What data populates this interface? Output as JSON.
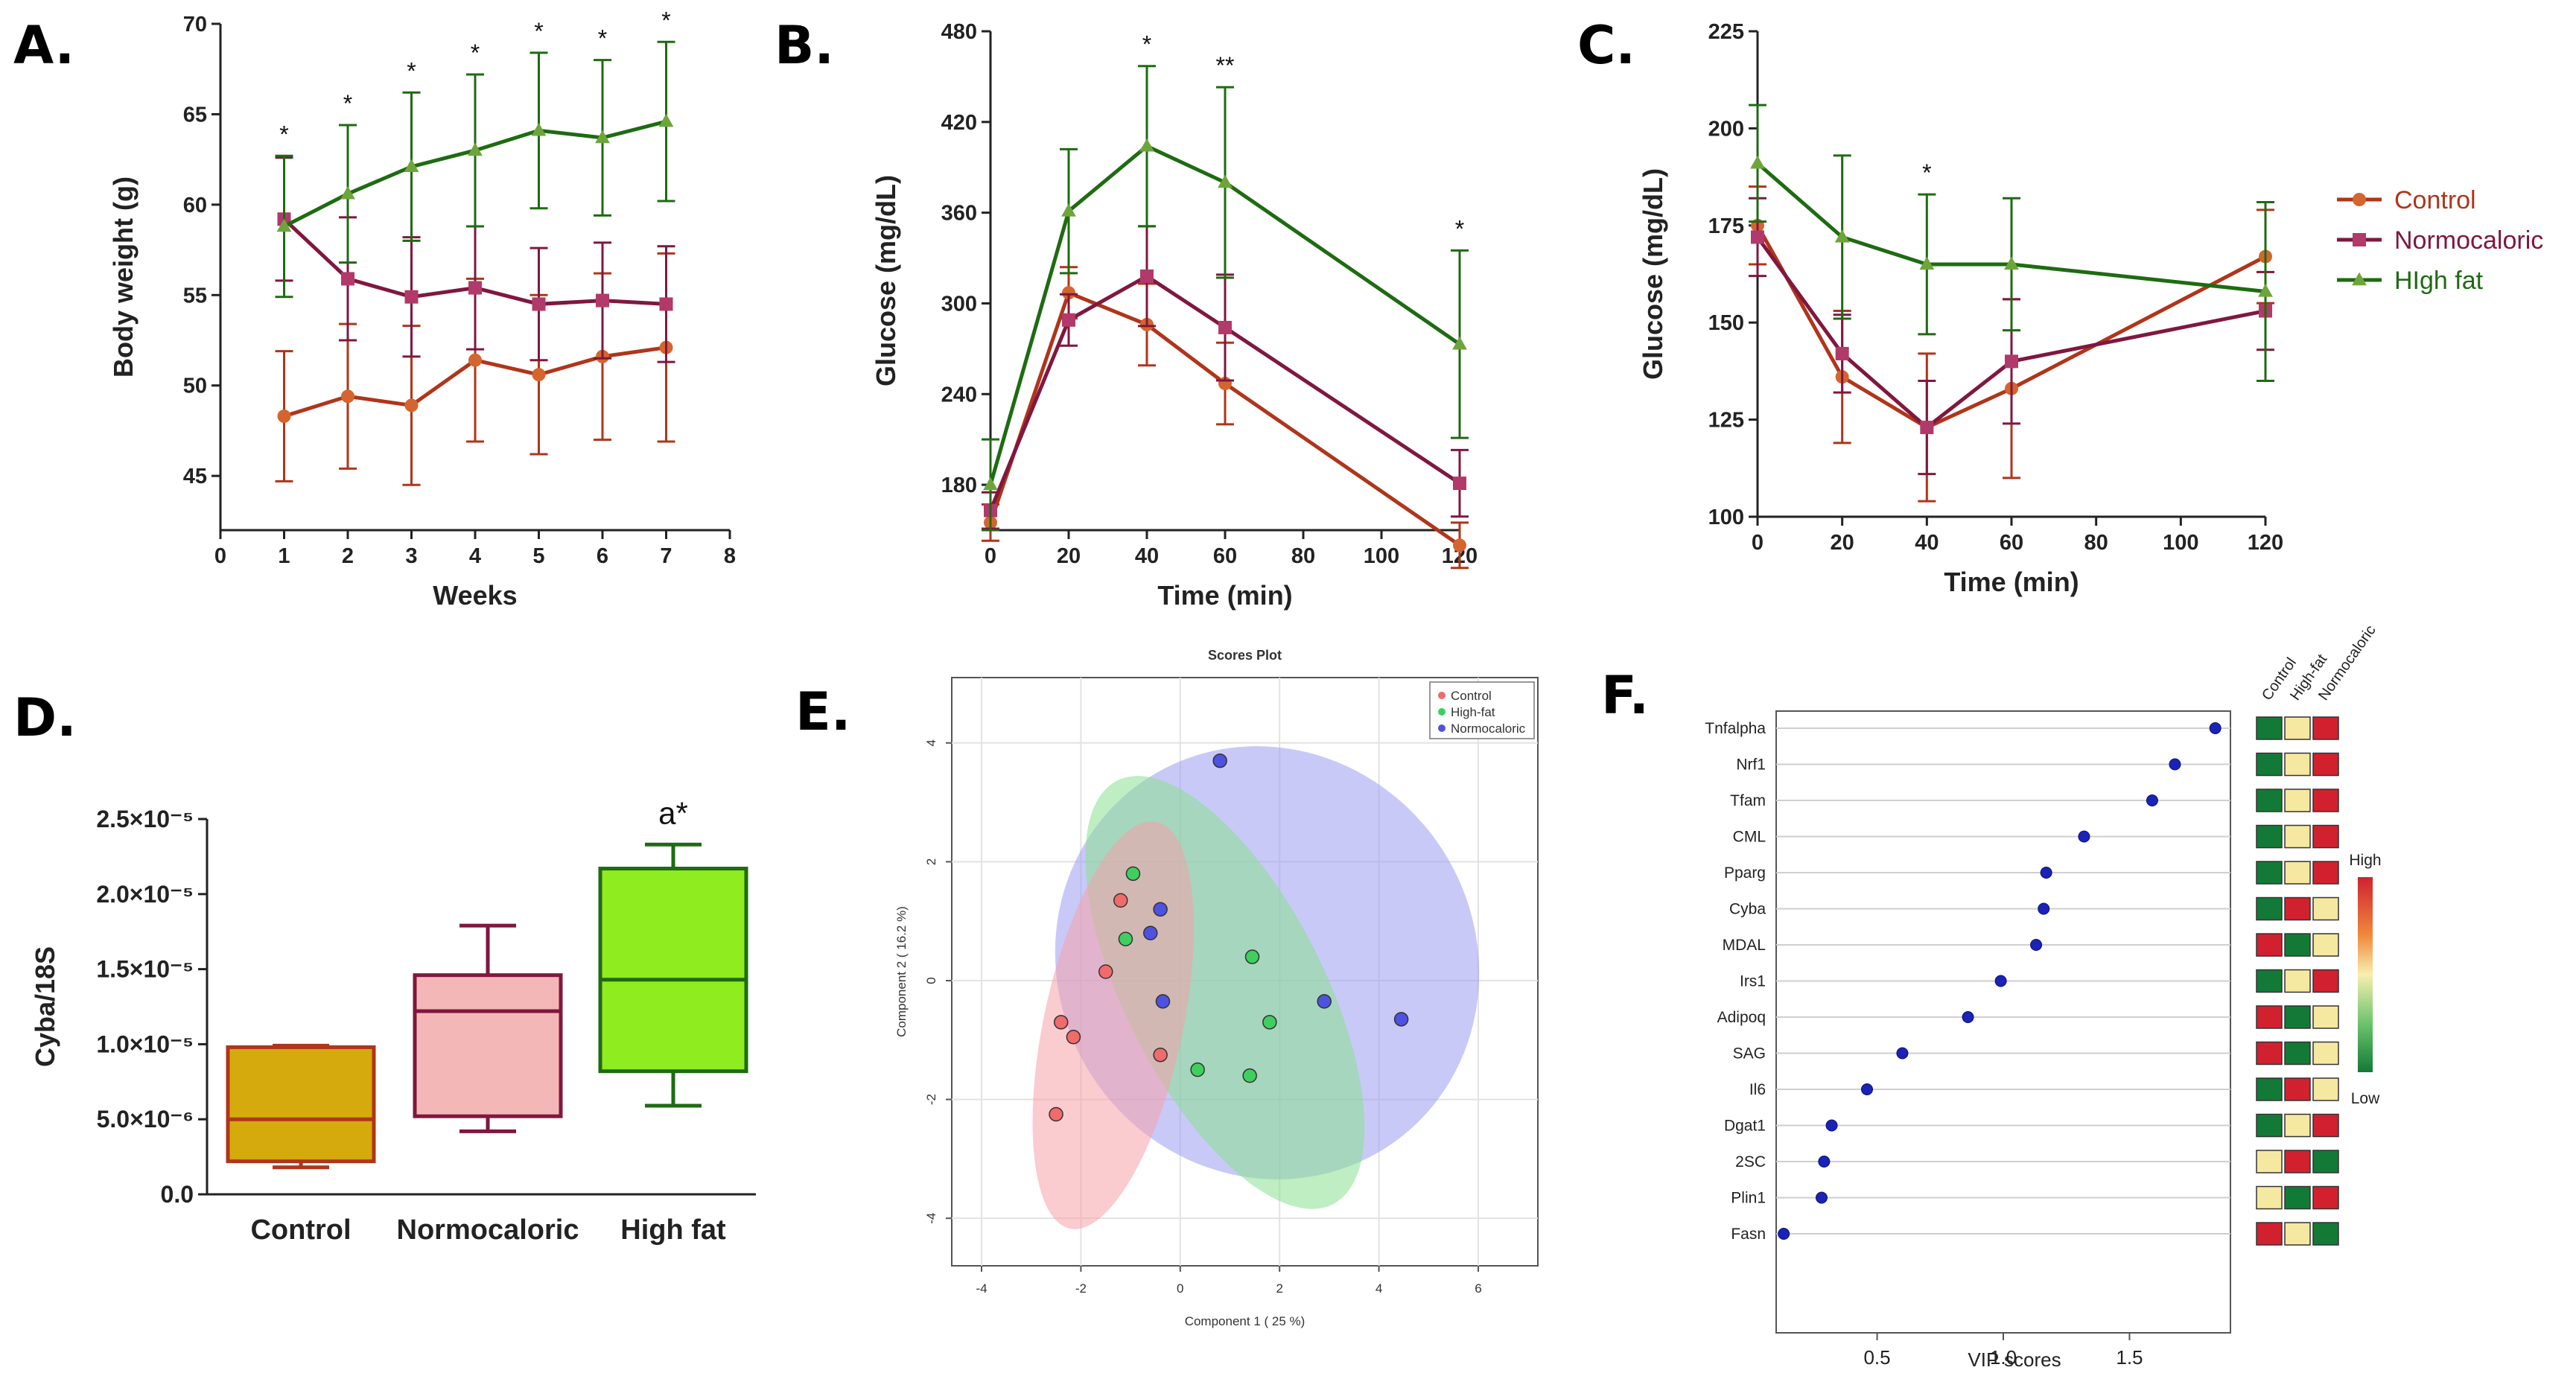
{
  "colors": {
    "control": "#b0351a",
    "normocaloric": "#80173f",
    "highfat": "#1e6b12",
    "control_marker": "#d4652f",
    "normo_marker": "#b13a6a",
    "highfat_marker": "#6ea53a"
  },
  "panel_labels": [
    "A.",
    "B.",
    "C.",
    "D.",
    "E.",
    "F."
  ],
  "chart_data": [
    {
      "panel": "A.",
      "type": "line",
      "xlabel": "Weeks",
      "ylabel": "Body weight (g)",
      "xlim": [
        0,
        8
      ],
      "ylim": [
        42,
        70
      ],
      "xticks": [
        "0",
        "1",
        "2",
        "3",
        "4",
        "5",
        "6",
        "7",
        "8"
      ],
      "yticks": [
        "45",
        "50",
        "55",
        "60",
        "65",
        "70"
      ],
      "x": [
        1,
        2,
        3,
        4,
        5,
        6,
        7
      ],
      "series": [
        {
          "name": "Control",
          "values": [
            48.3,
            49.4,
            48.9,
            51.4,
            50.6,
            51.6,
            52.1
          ],
          "errors": [
            3.6,
            4.0,
            4.4,
            4.5,
            4.4,
            4.6,
            5.2
          ]
        },
        {
          "name": "Normocaloric",
          "values": [
            59.2,
            55.9,
            54.9,
            55.4,
            54.5,
            54.7,
            54.5
          ],
          "errors": [
            3.4,
            3.4,
            3.3,
            3.4,
            3.1,
            3.2,
            3.2
          ]
        },
        {
          "name": "HIgh fat",
          "values": [
            58.8,
            60.6,
            62.1,
            63.0,
            64.1,
            63.7,
            64.6
          ],
          "errors": [
            3.9,
            3.8,
            4.1,
            4.2,
            4.3,
            4.3,
            4.4
          ]
        }
      ],
      "annotations": [
        "*",
        "*",
        "*",
        "*",
        "*",
        "*",
        "*"
      ]
    },
    {
      "panel": "B.",
      "type": "line",
      "xlabel": "Time (min)",
      "ylabel": "Glucose (mg/dL)",
      "xlim": [
        0,
        120
      ],
      "ylim": [
        150,
        480
      ],
      "xticks": [
        "0",
        "20",
        "40",
        "60",
        "80",
        "100",
        "120"
      ],
      "yticks": [
        "180",
        "240",
        "300",
        "360",
        "420",
        "480"
      ],
      "x": [
        0,
        20,
        40,
        60,
        120
      ],
      "series": [
        {
          "name": "Control",
          "values": [
            155,
            307,
            286,
            247,
            140
          ],
          "errors": [
            12,
            17,
            27,
            27,
            15
          ]
        },
        {
          "name": "Normocaloric",
          "values": [
            163,
            289,
            318,
            284,
            181
          ],
          "errors": [
            12,
            17,
            33,
            35,
            22
          ]
        },
        {
          "name": "HIgh fat",
          "values": [
            180,
            361,
            404,
            380,
            273
          ],
          "errors": [
            30,
            41,
            53,
            63,
            62
          ]
        }
      ],
      "annotations": [
        {
          "x": 40,
          "label": "*"
        },
        {
          "x": 60,
          "label": "**"
        },
        {
          "x": 120,
          "label": "*"
        }
      ]
    },
    {
      "panel": "C.",
      "type": "line",
      "xlabel": "Time (min)",
      "ylabel": "Glucose (mg/dL)",
      "xlim": [
        0,
        120
      ],
      "ylim": [
        100,
        225
      ],
      "xticks": [
        "0",
        "20",
        "40",
        "60",
        "80",
        "100",
        "120"
      ],
      "yticks": [
        "100",
        "125",
        "150",
        "175",
        "200",
        "225"
      ],
      "x": [
        0,
        20,
        40,
        60,
        120
      ],
      "series": [
        {
          "name": "Control",
          "values": [
            175,
            136,
            123,
            133,
            167
          ],
          "errors": [
            10,
            17,
            19,
            23,
            12
          ]
        },
        {
          "name": "Normocaloric",
          "values": [
            172,
            142,
            123,
            140,
            153
          ],
          "errors": [
            10,
            10,
            12,
            16,
            10
          ]
        },
        {
          "name": "HIgh fat",
          "values": [
            191,
            172,
            165,
            165,
            158
          ],
          "errors": [
            15,
            21,
            18,
            17,
            23
          ]
        }
      ],
      "annotations": [
        {
          "x": 40,
          "label": "*"
        }
      ],
      "legend": [
        "Control",
        "Normocaloric",
        "HIgh fat"
      ]
    },
    {
      "panel": "D.",
      "type": "box",
      "ylabel": "Cyba/18S",
      "ylim": [
        0,
        2.5e-05
      ],
      "yticks": [
        "0.0",
        "5.0×10⁻⁶",
        "1.0×10⁻⁵",
        "1.5×10⁻⁵",
        "2.0×10⁻⁵",
        "2.5×10⁻⁵"
      ],
      "categories": [
        "Control",
        "Normocaloric",
        "High fat"
      ],
      "boxes": [
        {
          "min": 1.8e-06,
          "q1": 2.2e-06,
          "median": 5e-06,
          "q3": 9.8e-06,
          "max": 9.9e-06,
          "fill": "#d4aa0c"
        },
        {
          "min": 4.2e-06,
          "q1": 5.2e-06,
          "median": 1.22e-05,
          "q3": 1.46e-05,
          "max": 1.79e-05,
          "fill": "#f3b7b7"
        },
        {
          "min": 5.9e-06,
          "q1": 8.2e-06,
          "median": 1.43e-05,
          "q3": 2.17e-05,
          "max": 2.33e-05,
          "fill": "#8fec1e"
        }
      ],
      "annotation": "a*"
    },
    {
      "panel": "E.",
      "type": "scatter",
      "title": "Scores Plot",
      "xlabel": "Component 1 ( 25 %)",
      "ylabel": "Component 2 ( 16.2 %)",
      "xlim": [
        -4.6,
        7.2
      ],
      "ylim": [
        -4.8,
        5.1
      ],
      "xticks": [
        "-4",
        "-2",
        "0",
        "2",
        "4",
        "6"
      ],
      "yticks": [
        "-4",
        "-2",
        "0",
        "2",
        "4"
      ],
      "legend": [
        "Control",
        "High-fat",
        "Normocaloric"
      ],
      "series": [
        {
          "name": "Control",
          "color": "#f06b6b",
          "points": [
            [
              -1.2,
              1.35
            ],
            [
              -1.5,
              0.15
            ],
            [
              -2.4,
              -0.7
            ],
            [
              -2.15,
              -0.95
            ],
            [
              -0.4,
              -1.25
            ],
            [
              -2.5,
              -2.25
            ]
          ]
        },
        {
          "name": "High-fat",
          "color": "#3fcf5f",
          "points": [
            [
              -0.95,
              1.8
            ],
            [
              -1.1,
              0.7
            ],
            [
              1.45,
              0.4
            ],
            [
              1.8,
              -0.7
            ],
            [
              0.35,
              -1.5
            ],
            [
              1.4,
              -1.6
            ]
          ]
        },
        {
          "name": "Normocaloric",
          "color": "#4d52e0",
          "points": [
            [
              0.8,
              3.7
            ],
            [
              -0.4,
              1.2
            ],
            [
              -0.6,
              0.8
            ],
            [
              -0.35,
              -0.35
            ],
            [
              2.9,
              -0.35
            ],
            [
              4.45,
              -0.65
            ]
          ]
        }
      ],
      "ellipses": [
        {
          "name": "Control",
          "cx": -1.35,
          "cy": -0.75,
          "rx": 1.4,
          "ry": 3.5,
          "angle": 12,
          "color": "#f5a0a8"
        },
        {
          "name": "High-fat",
          "cx": 0.9,
          "cy": -0.2,
          "rx": 2.0,
          "ry": 4.0,
          "angle": -27,
          "color": "#88e08e"
        },
        {
          "name": "Normocaloric",
          "cx": 1.75,
          "cy": 0.3,
          "rx": 4.2,
          "ry": 3.7,
          "angle": -33,
          "color": "#9c9cf2"
        }
      ]
    },
    {
      "panel": "F.",
      "type": "dot",
      "xlabel": "VIP scores",
      "xlim": [
        0.1,
        1.9
      ],
      "xticks": [
        "0.5",
        "1.0",
        "1.5"
      ],
      "column_headers": [
        "Control",
        "High-fat",
        "Normocaloric"
      ],
      "colorbar": {
        "high": "High",
        "low": "Low"
      },
      "features": [
        {
          "name": "Tnfalpha",
          "vip": 1.84,
          "tiles": [
            "g",
            "y",
            "r"
          ]
        },
        {
          "name": "Nrf1",
          "vip": 1.68,
          "tiles": [
            "g",
            "y",
            "r"
          ]
        },
        {
          "name": "Tfam",
          "vip": 1.59,
          "tiles": [
            "g",
            "y",
            "r"
          ]
        },
        {
          "name": "CML",
          "vip": 1.32,
          "tiles": [
            "g",
            "y",
            "r"
          ]
        },
        {
          "name": "Pparg",
          "vip": 1.17,
          "tiles": [
            "g",
            "y",
            "r"
          ]
        },
        {
          "name": "Cyba",
          "vip": 1.16,
          "tiles": [
            "g",
            "r",
            "y"
          ]
        },
        {
          "name": "MDAL",
          "vip": 1.13,
          "tiles": [
            "r",
            "g",
            "y"
          ]
        },
        {
          "name": "Irs1",
          "vip": 0.99,
          "tiles": [
            "g",
            "y",
            "r"
          ]
        },
        {
          "name": "Adipoq",
          "vip": 0.86,
          "tiles": [
            "r",
            "g",
            "y"
          ]
        },
        {
          "name": "SAG",
          "vip": 0.6,
          "tiles": [
            "r",
            "g",
            "y"
          ]
        },
        {
          "name": "Il6",
          "vip": 0.46,
          "tiles": [
            "g",
            "r",
            "y"
          ]
        },
        {
          "name": "Dgat1",
          "vip": 0.32,
          "tiles": [
            "g",
            "y",
            "r"
          ]
        },
        {
          "name": "2SC",
          "vip": 0.29,
          "tiles": [
            "y",
            "r",
            "g"
          ]
        },
        {
          "name": "Plin1",
          "vip": 0.28,
          "tiles": [
            "y",
            "g",
            "r"
          ]
        },
        {
          "name": "Fasn",
          "vip": 0.13,
          "tiles": [
            "r",
            "y",
            "g"
          ]
        }
      ]
    }
  ]
}
